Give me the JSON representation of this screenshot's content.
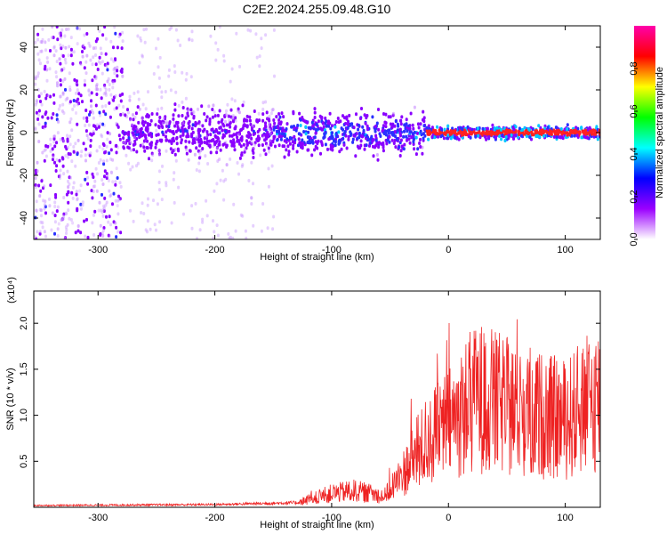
{
  "title": "C2E2.2024.255.09.48.G10",
  "chart_data": [
    {
      "type": "heatmap",
      "xlabel": "Height of straight line (km)",
      "ylabel": "Frequency (Hz)",
      "xlim": [
        -355,
        130
      ],
      "ylim": [
        -50,
        50
      ],
      "x_ticks": [
        -300,
        -200,
        -100,
        0,
        100
      ],
      "y_ticks": [
        -40,
        -20,
        0,
        20,
        40
      ],
      "colorbar": {
        "label": "Normalized spectral amplitude",
        "range": [
          0,
          1
        ],
        "ticks": [
          "0.0",
          "0.2",
          "0.4",
          "0.6",
          "0.8"
        ],
        "colors": [
          "#ffffff",
          "#9b00ff",
          "#0000ff",
          "#00ffff",
          "#00ff00",
          "#ffff00",
          "#ff0000",
          "#ff00aa"
        ]
      },
      "bands": [
        {
          "x_from": -355,
          "x_to": -280,
          "amplitude": 0.2,
          "spread": 50
        },
        {
          "x_from": -280,
          "x_to": -150,
          "amplitude": 0.25,
          "spread": 12
        },
        {
          "x_from": -150,
          "x_to": -20,
          "amplitude": 0.35,
          "spread": 10
        },
        {
          "x_from": -20,
          "x_to": 130,
          "amplitude": 0.9,
          "spread": 3
        }
      ]
    },
    {
      "type": "line",
      "xlabel": "Height of straight line (km)",
      "ylabel": "SNR (10 * v/v)",
      "y_multiplier": "(x10⁴)",
      "xlim": [
        -355,
        130
      ],
      "ylim": [
        0,
        2.35
      ],
      "x_ticks": [
        -300,
        -200,
        -100,
        0,
        100
      ],
      "y_ticks": [
        0.5,
        1.0,
        1.5,
        2.0
      ],
      "color": "#ee2222",
      "envelope": [
        {
          "x": -355,
          "y": 0.02
        },
        {
          "x": -200,
          "y": 0.03
        },
        {
          "x": -130,
          "y": 0.05
        },
        {
          "x": -100,
          "y": 0.15
        },
        {
          "x": -80,
          "y": 0.18
        },
        {
          "x": -55,
          "y": 0.12
        },
        {
          "x": -40,
          "y": 0.35
        },
        {
          "x": -20,
          "y": 0.7
        },
        {
          "x": 0,
          "y": 0.9
        },
        {
          "x": 25,
          "y": 1.2
        },
        {
          "x": 60,
          "y": 1.05
        },
        {
          "x": 100,
          "y": 0.95
        },
        {
          "x": 130,
          "y": 1.2
        }
      ]
    }
  ]
}
